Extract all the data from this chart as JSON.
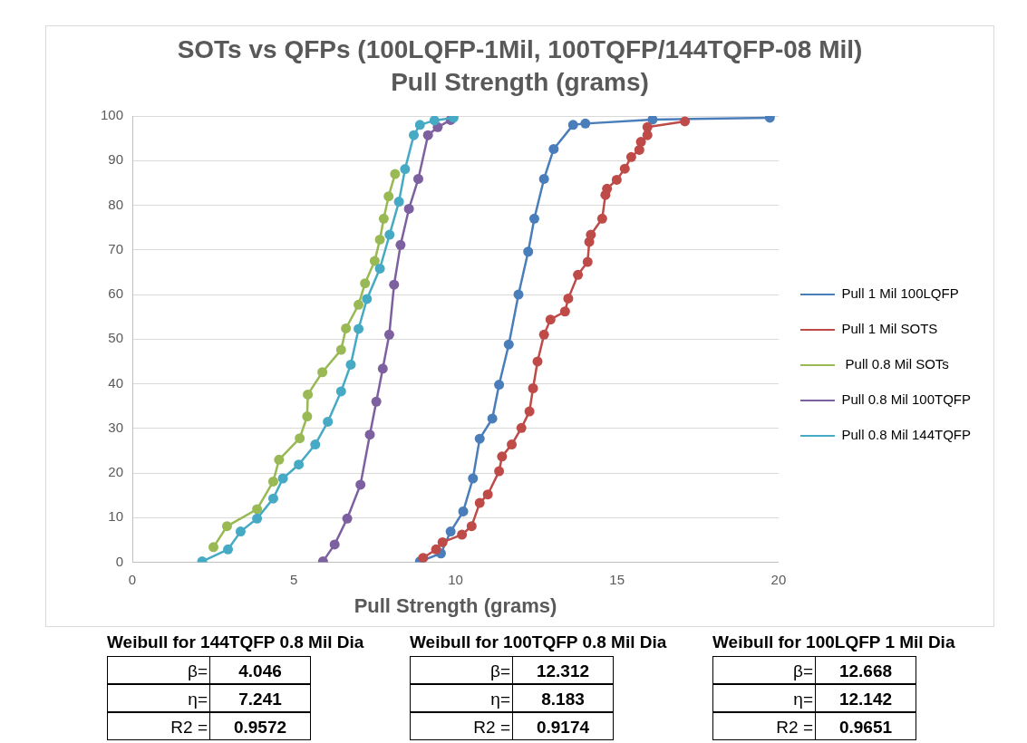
{
  "chart_data": {
    "type": "line",
    "title": "SOTs vs QFPs (100LQFP-1Mil, 100TQFP/144TQFP-08 Mil)",
    "subtitle": "Pull Strength (grams)",
    "xlabel": "Pull Strength (grams)",
    "xlim": [
      0,
      20
    ],
    "xticks": [
      0,
      5,
      10,
      15,
      20
    ],
    "ylim": [
      0,
      100
    ],
    "yticks": [
      0,
      10,
      20,
      30,
      40,
      50,
      60,
      70,
      80,
      90,
      100
    ],
    "grid": "y",
    "legend": "right",
    "marker": "circle",
    "line_style": "solid",
    "series": [
      {
        "name": "Pull 1 Mil 100LQFP",
        "color": "#4a7ebb",
        "x": [
          8.9,
          9.55,
          9.85,
          10.24,
          10.54,
          10.75,
          11.14,
          11.35,
          11.65,
          11.95,
          12.25,
          12.44,
          12.74,
          13.04,
          13.64,
          14.02,
          16.1,
          19.73
        ],
        "values": [
          0.2,
          2,
          6.9,
          11.4,
          18.8,
          27.7,
          32.2,
          39.8,
          48.8,
          60,
          69.6,
          77,
          85.9,
          92.6,
          98,
          98.3,
          99.2,
          99.6
        ]
      },
      {
        "name": "Pull 1 Mil SOTS",
        "color": "#be4b48",
        "x": [
          9.0,
          9.4,
          9.6,
          10.2,
          10.5,
          10.75,
          11.0,
          11.35,
          11.44,
          11.74,
          12.04,
          12.29,
          12.4,
          12.54,
          12.74,
          12.94,
          13.39,
          13.49,
          13.79,
          14.09,
          14.14,
          14.19,
          14.54,
          14.64,
          14.69,
          14.99,
          15.24,
          15.44,
          15.69,
          15.74,
          15.94,
          15.94,
          17.1
        ],
        "values": [
          1.0,
          2.9,
          4.5,
          6.2,
          8.1,
          13.3,
          15.2,
          20.4,
          23.7,
          26.4,
          30.1,
          33.8,
          39,
          45,
          51,
          54.4,
          56.2,
          59.1,
          64.4,
          67.3,
          71.8,
          73.4,
          77,
          82.3,
          83.7,
          85.7,
          88.2,
          90.8,
          92.4,
          94.2,
          95.7,
          97.5,
          98.8
        ]
      },
      {
        "name": " Pull 0.8 Mil SOTs",
        "color": "#98b954",
        "x": [
          2.51,
          2.93,
          3.86,
          4.36,
          4.54,
          5.18,
          5.41,
          5.43,
          5.88,
          6.46,
          6.61,
          7.0,
          7.2,
          7.5,
          7.66,
          7.78,
          7.93,
          8.13
        ],
        "values": [
          3.4,
          8.1,
          11.9,
          18.1,
          23,
          27.8,
          32.7,
          37.6,
          42.6,
          47.6,
          52.4,
          57.7,
          62.5,
          67.5,
          72.3,
          77,
          82,
          87
        ]
      },
      {
        "name": "Pull 0.8 Mil 100TQFP",
        "color": "#7d60a0",
        "x": [
          5.9,
          6.26,
          6.65,
          7.06,
          7.35,
          7.55,
          7.75,
          7.95,
          8.1,
          8.3,
          8.56,
          8.85,
          9.15,
          9.45,
          9.85
        ],
        "values": [
          0.2,
          4,
          9.8,
          17.4,
          28.6,
          36,
          43.4,
          51,
          62.2,
          71.1,
          79.2,
          85.9,
          95.7,
          97.5,
          99.1
        ]
      },
      {
        "name": "Pull 0.8 Mil 144TQFP",
        "color": "#46aac5",
        "x": [
          2.16,
          2.96,
          3.35,
          3.86,
          4.36,
          4.66,
          5.15,
          5.66,
          6.05,
          6.46,
          6.76,
          7.0,
          7.26,
          7.66,
          7.96,
          8.25,
          8.44,
          8.71,
          8.9,
          9.35,
          9.94
        ],
        "values": [
          0.2,
          2.9,
          6.9,
          9.8,
          14.3,
          18.8,
          21.9,
          26.4,
          31.5,
          38.3,
          44.3,
          52.3,
          59,
          65.8,
          73.4,
          80.8,
          88.1,
          95.7,
          98,
          99,
          99.6
        ]
      }
    ],
    "annotations": [
      "Weibull for 144TQFP 0.8 Mil Dia",
      "β=",
      "4.046",
      "η=",
      "7.241",
      "R2 =",
      "0.9572",
      "Weibull for 100TQFP 0.8 Mil Dia",
      "β=",
      "12.312",
      "η=",
      "8.183",
      "R2 =",
      "0.9174",
      "Weibull for 100LQFP 1 Mil Dia",
      "β=",
      "12.668",
      "η=",
      "12.142",
      "R2 =",
      "0.9651"
    ]
  }
}
